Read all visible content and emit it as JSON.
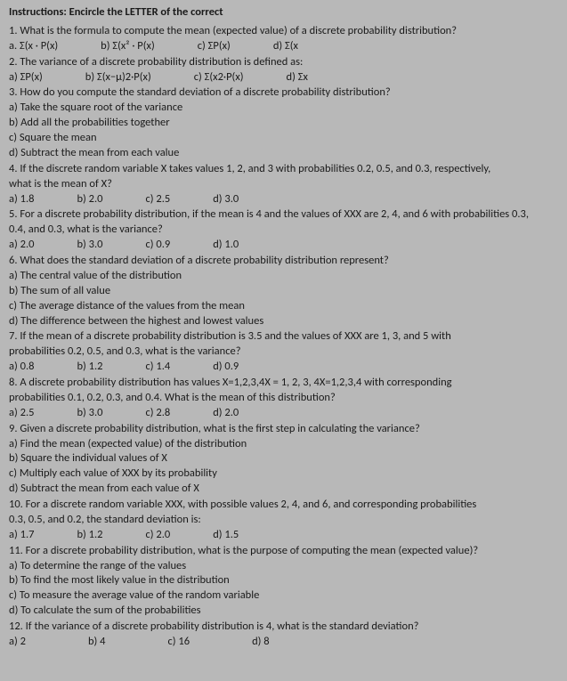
{
  "topline": "Instructions: Encircle the LETTER of the correct",
  "q1": {
    "stem": "1. What is the formula to compute the mean (expected value) of a discrete probability distribution?",
    "a": "a. Σ(x · P(x)",
    "b": "b) Σ(x² · P(x)",
    "c": "c) ΣP(x)",
    "d": "d) Σ(x"
  },
  "q2": {
    "stem": "2. The variance of a discrete probability distribution is defined as:",
    "a": "a) ΣP(x)",
    "b": "b) Σ(x−μ)2·P(x)",
    "c": "c) Σ(x2·P(x)",
    "d": "d) Σx"
  },
  "q3": {
    "stem": "3. How do you compute the standard deviation of a discrete probability distribution?",
    "a": "a) Take the square root of the variance",
    "b": "b) Add all the probabilities together",
    "c": "c) Square the mean",
    "d": "d) Subtract the mean from each value"
  },
  "q4": {
    "stem1": "4. If the discrete random variable X takes values 1, 2, and 3 with probabilities 0.2, 0.5, and 0.3, respectively,",
    "stem2": "what is the mean of X?",
    "a": "a) 1.8",
    "b": "b) 2.0",
    "c": "c) 2.5",
    "d": "d) 3.0"
  },
  "q5": {
    "stem1": "5. For a discrete probability distribution, if the mean is 4 and the values of XXX are 2, 4, and 6 with probabilities 0.3,",
    "stem2": "0.4, and 0.3, what is the variance?",
    "a": "a) 2.0",
    "b": "b) 3.0",
    "c": "c) 0.9",
    "d": "d) 1.0"
  },
  "q6": {
    "stem": "6. What does the standard deviation of a discrete probability distribution represent?",
    "a": "a) The central value of the distribution",
    "b": "b) The sum of all value",
    "c": "c) The average distance of the values from the mean",
    "d": "d) The difference between the highest and lowest values"
  },
  "q7": {
    "stem1": "7. If the mean of a discrete probability distribution is 3.5 and the values of XXX are 1, 3, and 5 with",
    "stem2": "probabilities 0.2, 0.5, and 0.3, what is the variance?",
    "a": "a) 0.8",
    "b": "b) 1.2",
    "c": "c) 1.4",
    "d": "d) 0.9"
  },
  "q8": {
    "stem1": "8. A discrete probability distribution has values X=1,2,3,4X = 1, 2, 3, 4X=1,2,3,4 with corresponding",
    "stem2": "probabilities 0.1, 0.2, 0.3, and 0.4. What is the mean of this distribution?",
    "a": "a) 2.5",
    "b": "b) 3.0",
    "c": "c) 2.8",
    "d": "d) 2.0"
  },
  "q9": {
    "stem": "9. Given a discrete probability distribution, what is the first step in calculating the variance?",
    "a": "a) Find the mean (expected value) of the distribution",
    "b": "b) Square the individual values of X",
    "c": "c) Multiply each value of XXX by its probability",
    "d": "d) Subtract the mean from each value of X"
  },
  "q10": {
    "stem1": "10. For a discrete random variable XXX, with possible values 2, 4, and 6, and corresponding probabilities",
    "stem2": "0.3, 0.5, and 0.2, the standard deviation is:",
    "a": "a) 1.7",
    "b": "b) 1.2",
    "c": "c) 2.0",
    "d": "d) 1.5"
  },
  "q11": {
    "stem": "11. For a discrete probability distribution, what is the purpose of computing the mean (expected value)?",
    "a": "a) To determine the range of the values",
    "b": "b) To find the most likely value in the distribution",
    "c": "c) To measure the average value of the random variable",
    "d": "d) To calculate the sum of the probabilities"
  },
  "q12": {
    "stem": "12. If the variance of a discrete probability distribution is 4, what is the standard deviation?",
    "a": "a) 2",
    "b": "b) 4",
    "c": "c) 16",
    "d": "d) 8"
  }
}
